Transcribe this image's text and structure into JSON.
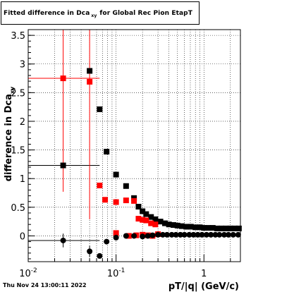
{
  "title": {
    "main": "Fitted difference in Dca",
    "subscript": "xy",
    "rest": "for Global Rec Pion EtapT"
  },
  "footer": "Thu Nov 24 13:00:11 2022",
  "colors": {
    "black_series": "#000000",
    "red_series": "#ff0000",
    "grid": "#000000"
  },
  "chart_data": {
    "type": "scatter",
    "xlabel": "pT/|q| (GeV/c)",
    "ylabel": "difference in Dca_xy",
    "xscale": "log",
    "xlim": [
      0.01,
      2.6
    ],
    "ylim": [
      -0.45,
      3.6
    ],
    "x_tick_labels": [
      {
        "value": 0.01,
        "base": "10",
        "exp": "-2"
      },
      {
        "value": 0.1,
        "base": "10",
        "exp": "-1"
      },
      {
        "value": 1,
        "base": "1",
        "exp": ""
      }
    ],
    "y_ticks": [
      {
        "value": 0,
        "label": "0"
      },
      {
        "value": 0.5,
        "label": "0.5"
      },
      {
        "value": 1,
        "label": "1"
      },
      {
        "value": 1.5,
        "label": "1.5"
      },
      {
        "value": 2,
        "label": "2"
      },
      {
        "value": 2.5,
        "label": "2.5"
      },
      {
        "value": 3,
        "label": "3"
      },
      {
        "value": 3.5,
        "label": "3.5"
      }
    ],
    "grid": true,
    "series": [
      {
        "marker": "square",
        "color": "#000000",
        "points": [
          {
            "x": 0.025,
            "y": 1.23,
            "xerr": [
              0.015,
              0.04
            ],
            "yerr": 0
          },
          {
            "x": 0.05,
            "y": 2.88,
            "yerr": 0
          },
          {
            "x": 0.065,
            "y": 2.21
          },
          {
            "x": 0.078,
            "y": 1.47
          },
          {
            "x": 0.1,
            "y": 1.07
          },
          {
            "x": 0.13,
            "y": 0.87
          },
          {
            "x": 0.16,
            "y": 0.66
          },
          {
            "x": 0.18,
            "y": 0.51
          },
          {
            "x": 0.2,
            "y": 0.43
          },
          {
            "x": 0.22,
            "y": 0.38
          },
          {
            "x": 0.25,
            "y": 0.33
          },
          {
            "x": 0.28,
            "y": 0.29
          },
          {
            "x": 0.32,
            "y": 0.25
          },
          {
            "x": 0.36,
            "y": 0.22
          },
          {
            "x": 0.4,
            "y": 0.2
          },
          {
            "x": 0.45,
            "y": 0.19
          },
          {
            "x": 0.5,
            "y": 0.18
          },
          {
            "x": 0.56,
            "y": 0.17
          },
          {
            "x": 0.63,
            "y": 0.16
          },
          {
            "x": 0.71,
            "y": 0.16
          },
          {
            "x": 0.8,
            "y": 0.15
          },
          {
            "x": 0.9,
            "y": 0.15
          },
          {
            "x": 1.0,
            "y": 0.14
          },
          {
            "x": 1.12,
            "y": 0.14
          },
          {
            "x": 1.26,
            "y": 0.14
          },
          {
            "x": 1.41,
            "y": 0.13
          },
          {
            "x": 1.58,
            "y": 0.13
          },
          {
            "x": 1.78,
            "y": 0.13
          },
          {
            "x": 2.0,
            "y": 0.13
          },
          {
            "x": 2.24,
            "y": 0.13
          },
          {
            "x": 2.5,
            "y": 0.13
          }
        ]
      },
      {
        "marker": "square",
        "color": "#ff0000",
        "points": [
          {
            "x": 0.025,
            "y": 2.75,
            "xerr": [
              0.015,
              0.04
            ],
            "yerr": [
              1.98,
              2.0
            ]
          },
          {
            "x": 0.05,
            "y": 2.69,
            "xerr": [
              0.0,
              0.0
            ],
            "yerr": [
              2.4,
              1.5
            ]
          },
          {
            "x": 0.065,
            "y": 0.88
          },
          {
            "x": 0.075,
            "y": 0.63
          },
          {
            "x": 0.1,
            "y": 0.59
          },
          {
            "x": 0.13,
            "y": 0.62
          },
          {
            "x": 0.16,
            "y": 0.61
          },
          {
            "x": 0.18,
            "y": 0.3
          },
          {
            "x": 0.2,
            "y": 0.28
          },
          {
            "x": 0.22,
            "y": 0.27
          },
          {
            "x": 0.25,
            "y": 0.22
          },
          {
            "x": 0.28,
            "y": 0.2
          },
          {
            "x": 0.1,
            "y": 0.05
          },
          {
            "x": 0.14,
            "y": 0.0
          },
          {
            "x": 0.17,
            "y": 0.01
          },
          {
            "x": 0.2,
            "y": 0.02
          },
          {
            "x": 0.23,
            "y": 0.01
          },
          {
            "x": 0.26,
            "y": 0.0
          },
          {
            "x": 0.3,
            "y": 0.03
          }
        ]
      },
      {
        "marker": "circle",
        "color": "#000000",
        "points": [
          {
            "x": 0.025,
            "y": -0.08,
            "xerr": [
              0.015,
              0.04
            ],
            "yerr": [
              0.12,
              0.12
            ]
          },
          {
            "x": 0.05,
            "y": -0.27,
            "yerr": [
              0.1,
              0.1
            ]
          },
          {
            "x": 0.065,
            "y": -0.35
          },
          {
            "x": 0.078,
            "y": -0.1
          },
          {
            "x": 0.1,
            "y": -0.03
          },
          {
            "x": 0.13,
            "y": 0.0
          },
          {
            "x": 0.16,
            "y": 0.0
          },
          {
            "x": 0.2,
            "y": -0.01
          },
          {
            "x": 0.23,
            "y": 0.0
          },
          {
            "x": 0.26,
            "y": 0.01
          },
          {
            "x": 0.3,
            "y": 0.02
          },
          {
            "x": 0.34,
            "y": 0.02
          },
          {
            "x": 0.38,
            "y": 0.02
          },
          {
            "x": 0.43,
            "y": 0.02
          },
          {
            "x": 0.48,
            "y": 0.02
          },
          {
            "x": 0.54,
            "y": 0.02
          },
          {
            "x": 0.6,
            "y": 0.02
          },
          {
            "x": 0.68,
            "y": 0.02
          },
          {
            "x": 0.76,
            "y": 0.02
          },
          {
            "x": 0.85,
            "y": 0.02
          },
          {
            "x": 0.95,
            "y": 0.02
          },
          {
            "x": 1.07,
            "y": 0.02
          },
          {
            "x": 1.2,
            "y": 0.02
          },
          {
            "x": 1.35,
            "y": 0.02
          },
          {
            "x": 1.5,
            "y": 0.02
          },
          {
            "x": 1.7,
            "y": 0.02
          },
          {
            "x": 1.9,
            "y": 0.02
          },
          {
            "x": 2.15,
            "y": 0.02
          },
          {
            "x": 2.45,
            "y": 0.02
          }
        ]
      }
    ]
  }
}
